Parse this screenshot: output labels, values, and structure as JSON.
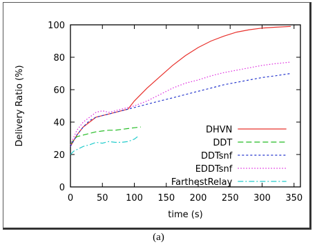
{
  "caption": "(a)",
  "chart_data": {
    "type": "line",
    "title": "",
    "xlabel": "time (s)",
    "ylabel": "Delivery Ratio (%)",
    "xlim": [
      0,
      360
    ],
    "ylim": [
      0,
      100
    ],
    "xticks": [
      0,
      50,
      100,
      150,
      200,
      250,
      300,
      350
    ],
    "yticks": [
      0,
      20,
      40,
      60,
      80,
      100
    ],
    "grid": false,
    "legend_position": "lower-right",
    "series": [
      {
        "name": "DHVN",
        "color": "#e8302b",
        "dash": "solid",
        "x": [
          0,
          10,
          20,
          30,
          40,
          50,
          60,
          70,
          80,
          90,
          100,
          120,
          140,
          160,
          180,
          200,
          220,
          240,
          260,
          280,
          300,
          320,
          345
        ],
        "y": [
          25,
          32,
          37,
          40,
          43,
          44,
          45,
          46,
          47,
          48,
          53,
          61,
          68,
          75,
          81,
          86,
          90,
          93,
          95.5,
          97,
          98,
          98.5,
          99
        ]
      },
      {
        "name": "DDT",
        "color": "#22bb22",
        "dash": "8,4",
        "x": [
          0,
          5,
          10,
          20,
          30,
          40,
          50,
          60,
          70,
          80,
          90,
          100,
          110
        ],
        "y": [
          26,
          29,
          31,
          32,
          33,
          34,
          34.5,
          35,
          35,
          35.5,
          36,
          36.5,
          37
        ]
      },
      {
        "name": "DDTsnf",
        "color": "#2233cc",
        "dash": "3,3",
        "x": [
          0,
          10,
          20,
          30,
          40,
          50,
          60,
          70,
          80,
          90,
          100,
          120,
          140,
          160,
          180,
          200,
          220,
          240,
          260,
          280,
          300,
          320,
          345
        ],
        "y": [
          25,
          32,
          37,
          41,
          43,
          44,
          45,
          46,
          47,
          48,
          49,
          51,
          53,
          55,
          57,
          59,
          61,
          63,
          64.5,
          66,
          67.5,
          68.5,
          70
        ]
      },
      {
        "name": "EDDTsnf",
        "color": "#dd22dd",
        "dash": "1.5,2.5",
        "x": [
          0,
          10,
          20,
          30,
          40,
          50,
          60,
          70,
          80,
          90,
          100,
          120,
          140,
          160,
          180,
          200,
          220,
          240,
          260,
          280,
          300,
          320,
          345
        ],
        "y": [
          26,
          35,
          40,
          43,
          46,
          47,
          46,
          47,
          48,
          49,
          50,
          53,
          57,
          61,
          64,
          66,
          68.5,
          70.5,
          72,
          73.5,
          75,
          76,
          77
        ]
      },
      {
        "name": "FarthestRelay",
        "color": "#22cccc",
        "dash": "8,3,2,3",
        "x": [
          0,
          5,
          10,
          20,
          30,
          40,
          50,
          60,
          70,
          80,
          90,
          100,
          105
        ],
        "y": [
          20,
          22,
          23,
          25,
          26,
          27.5,
          27,
          28,
          27.5,
          27.5,
          28,
          29.5,
          31
        ]
      }
    ]
  }
}
